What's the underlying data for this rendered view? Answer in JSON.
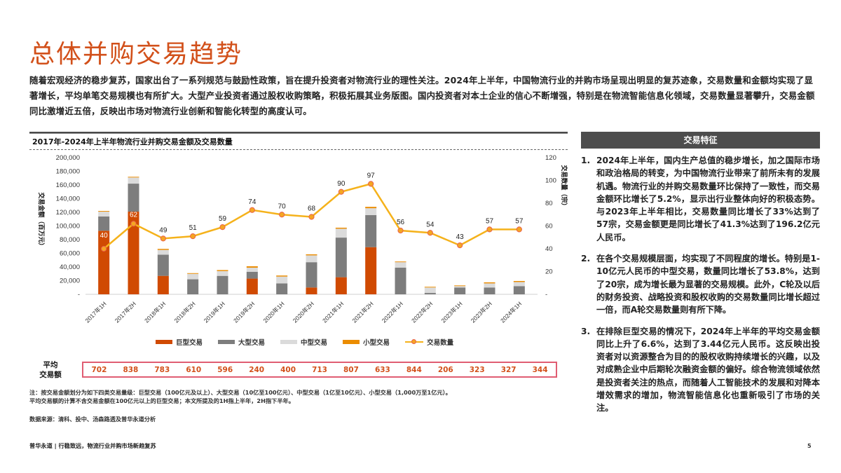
{
  "page": {
    "title": "总体并购交易趋势",
    "intro": "随着宏观经济的稳步复苏，国家出台了一系列规范与鼓励性政策，旨在提升投资者对物流行业的理性关注。2024年上半年，中国物流行业的并购市场呈现出明显的复苏迹象，交易数量和金额均实现了显著增长，平均单笔交易规模也有所扩大。大型产业投资者通过股权收购策略，积极拓展其业务版图。国内投资者对本土企业的信心不断增强，特别是在物流智能信息化领域，交易数量显著攀升，交易金额同比激增近五倍，反映出市场对物流行业创新和智能化转型的高度认可。",
    "page_number": "5"
  },
  "chart": {
    "title": "2017年-2024年上半年物流行业并购交易金额及交易数量",
    "left_axis_label": "交易金额（百万元）",
    "right_axis_label": "交易数量（宗）",
    "left_ticks": [
      "200,000",
      "180,000",
      "160,000",
      "140,000",
      "120,000",
      "100,000",
      "80,000",
      "60,000",
      "40,000",
      "20,000",
      "-"
    ],
    "right_ticks": [
      "120",
      "100",
      "80",
      "60",
      "40",
      "20",
      "-"
    ],
    "legend": {
      "giant": "巨型交易",
      "large": "大型交易",
      "mid": "中型交易",
      "small": "小型交易",
      "count": "交易数量"
    },
    "colors": {
      "giant": "#d04a02",
      "large": "#7d7d7d",
      "mid": "#dbdbdb",
      "small": "#eb8c00",
      "line": "#f5b21b",
      "marker": "#f5a623",
      "marker_border": "#e8604c",
      "avg_box_border": "#e05d72",
      "avg_text": "#d2501a",
      "title": "#d2501a"
    },
    "avg_label_line1": "平均",
    "avg_label_line2": "交易额"
  },
  "chart_data": {
    "type": "bar",
    "title": "2017年-2024年上半年物流行业并购交易金额及交易数量",
    "xlabel": "",
    "ylabel": "交易金额（百万元）",
    "y2label": "交易数量（宗）",
    "ylim": [
      0,
      200000
    ],
    "y2lim": [
      0,
      120
    ],
    "stacked": true,
    "legend_position": "bottom",
    "categories": [
      "2017年1H",
      "2017年2H",
      "2018年1H",
      "2018年2H",
      "2019年1H",
      "2019年2H",
      "2020年1H",
      "2020年2H",
      "2021年1H",
      "2021年2H",
      "2022年1H",
      "2022年2H",
      "2023年1H",
      "2023年2H",
      "2024年1H"
    ],
    "series": [
      {
        "name": "巨型交易",
        "type": "bar",
        "values": [
          93000,
          121000,
          27000,
          0,
          0,
          23000,
          0,
          10000,
          25000,
          69000,
          0,
          0,
          0,
          0,
          0
        ]
      },
      {
        "name": "大型交易",
        "type": "bar",
        "values": [
          21000,
          41000,
          31000,
          22000,
          27000,
          10000,
          16000,
          37000,
          58000,
          47000,
          39000,
          2000,
          10000,
          10000,
          12000
        ]
      },
      {
        "name": "中型交易",
        "type": "bar",
        "values": [
          7000,
          9000,
          7000,
          8000,
          7000,
          6000,
          10000,
          10000,
          13000,
          10000,
          8000,
          8000,
          2000,
          6000,
          6000
        ]
      },
      {
        "name": "小型交易",
        "type": "bar",
        "values": [
          1000,
          1000,
          1500,
          1000,
          1500,
          2000,
          1500,
          1500,
          1500,
          2000,
          1000,
          1000,
          1000,
          1500,
          1500
        ]
      },
      {
        "name": "交易数量",
        "type": "line",
        "axis": "right",
        "values": [
          40,
          62,
          49,
          51,
          59,
          74,
          70,
          68,
          90,
          97,
          56,
          54,
          43,
          57,
          57
        ]
      }
    ],
    "avg_deal_value": [
      702,
      838,
      783,
      610,
      596,
      240,
      400,
      713,
      807,
      633,
      844,
      206,
      323,
      327,
      344
    ]
  },
  "notes": {
    "line1": "注：按交易金额划分为如下四类交易量级：巨型交易（100亿元及以上）、大型交易（10亿至100亿元）、中型交易（1亿至10亿元）、小型交易（1,000万至1亿元）。",
    "line2": "平均交易额的计算不含交易金额在100亿元以上的巨型交易；本文所提及的1H指上半年，2H指下半年。",
    "source": "数据来源：清科、投中、汤森路透及普华永道分析",
    "footer": "普华永道 | 行稳致远，物流行业并购市场新趋复苏"
  },
  "sidebar": {
    "header": "交易特征",
    "items": [
      {
        "num": "1.",
        "text": "2024年上半年，国内生产总值的稳步增长，加之国际市场和政治格局的转变，为中国物流行业带来了前所未有的发展机遇。物流行业的并购交易数量环比保持了一致性，而交易金额环比增长了5.2%，显示出行业整体向好的积极态势。与2023年上半年相比，交易数量同比增长了33%达到了57宗，交易金额更是同比增长了41.3%达到了196.2亿元人民币。"
      },
      {
        "num": "2.",
        "text": "在各个交易规模层面，均实现了不同程度的增长。特别是1-10亿元人民币的中型交易，数量同比增长了53.8%，达到了20宗，成为增长最为显著的交易规模。此外，C轮及以后的财务投资、战略投资和股权收购的交易数量同比增长超过一倍，而A轮交易数量则有所下降。"
      },
      {
        "num": "3.",
        "text": "在排除巨型交易的情况下，2024年上半年的平均交易金额同比上升了6.6%，达到了3.44亿元人民币。这反映出投资者对以资源整合为目的的股权收购持续增长的兴趣，以及对成熟企业中后期轮次融资金额的偏好。综合物流领域依然是投资者关注的热点，而随着人工智能技术的发展和对降本增效需求的增加，物流智能信息化也重新吸引了市场的关注。"
      }
    ]
  }
}
